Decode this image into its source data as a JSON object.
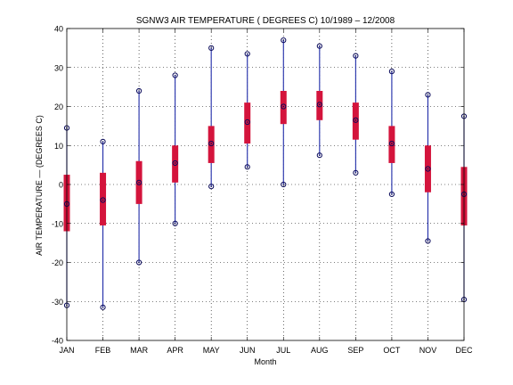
{
  "chart_data": {
    "type": "box",
    "title": "SGNW3  AIR TEMPERATURE ( DEGREES C) 10/1989 – 12/2008",
    "xlabel": "Month",
    "ylabel": "AIR TEMPERATURE — (DEGREES C)",
    "ylim": [
      -40,
      40
    ],
    "yticks": [
      -40,
      -30,
      -20,
      -10,
      0,
      10,
      20,
      30,
      40
    ],
    "grid": true,
    "categories": [
      "JAN",
      "FEB",
      "MAR",
      "APR",
      "MAY",
      "JUN",
      "JUL",
      "AUG",
      "SEP",
      "OCT",
      "NOV",
      "DEC"
    ],
    "series": [
      {
        "min": [
          -31,
          -31.5,
          -20,
          -10,
          -0.5,
          4.5,
          0,
          7.5,
          3,
          -2.5,
          -14.5,
          -29.5
        ],
        "q1": [
          -12,
          -10.5,
          -5,
          0.5,
          5.5,
          10.5,
          15.5,
          16.5,
          11.5,
          5.5,
          -2,
          -10.5
        ],
        "median": [
          -5,
          -4,
          0.5,
          5.5,
          10.5,
          16,
          20,
          20.5,
          16.5,
          10.5,
          4,
          -2.5
        ],
        "q3": [
          2.5,
          3,
          6,
          10,
          15,
          21,
          24,
          24,
          21,
          15,
          10,
          4.5
        ],
        "max": [
          14.5,
          11,
          24,
          28,
          35,
          33.5,
          37,
          35.5,
          33,
          29,
          23,
          17.5
        ]
      }
    ],
    "colors": {
      "whisker": "#1f2ba8",
      "box": "#d4143c",
      "marker": "#0a0a5a"
    }
  }
}
